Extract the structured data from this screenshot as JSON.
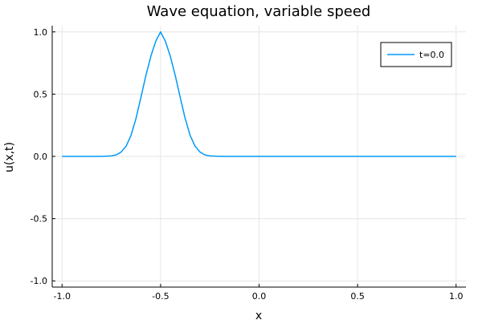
{
  "chart_data": {
    "type": "line",
    "title": "Wave equation, variable speed",
    "xlabel": "x",
    "ylabel": "u(x,t)",
    "xlim": [
      -1.05,
      1.05
    ],
    "ylim": [
      -1.05,
      1.05
    ],
    "xticks": [
      -1.0,
      -0.5,
      0.0,
      0.5,
      1.0
    ],
    "xtick_labels": [
      "-1.0",
      "-0.5",
      "0.0",
      "0.5",
      "1.0"
    ],
    "yticks": [
      -1.0,
      -0.5,
      0.0,
      0.5,
      1.0
    ],
    "ytick_labels": [
      "-1.0",
      "-0.5",
      "0.0",
      "0.5",
      "1.0"
    ],
    "grid": true,
    "legend_position": "top-right",
    "series": [
      {
        "name": "t=0.0",
        "color": "#009AFA",
        "x": [
          -1.0,
          -0.9,
          -0.8,
          -0.75,
          -0.725,
          -0.7,
          -0.675,
          -0.65,
          -0.625,
          -0.6,
          -0.575,
          -0.55,
          -0.525,
          -0.5,
          -0.475,
          -0.45,
          -0.425,
          -0.4,
          -0.375,
          -0.35,
          -0.325,
          -0.3,
          -0.275,
          -0.25,
          -0.2,
          -0.1,
          0.0,
          0.25,
          0.5,
          0.75,
          1.0
        ],
        "y": [
          0.0,
          0.0,
          0.0,
          0.004,
          0.012,
          0.035,
          0.082,
          0.169,
          0.303,
          0.472,
          0.647,
          0.801,
          0.923,
          1.0,
          0.923,
          0.801,
          0.647,
          0.472,
          0.303,
          0.169,
          0.082,
          0.035,
          0.012,
          0.004,
          0.0,
          0.0,
          0.0,
          0.0,
          0.0,
          0.0,
          0.0
        ]
      }
    ]
  }
}
